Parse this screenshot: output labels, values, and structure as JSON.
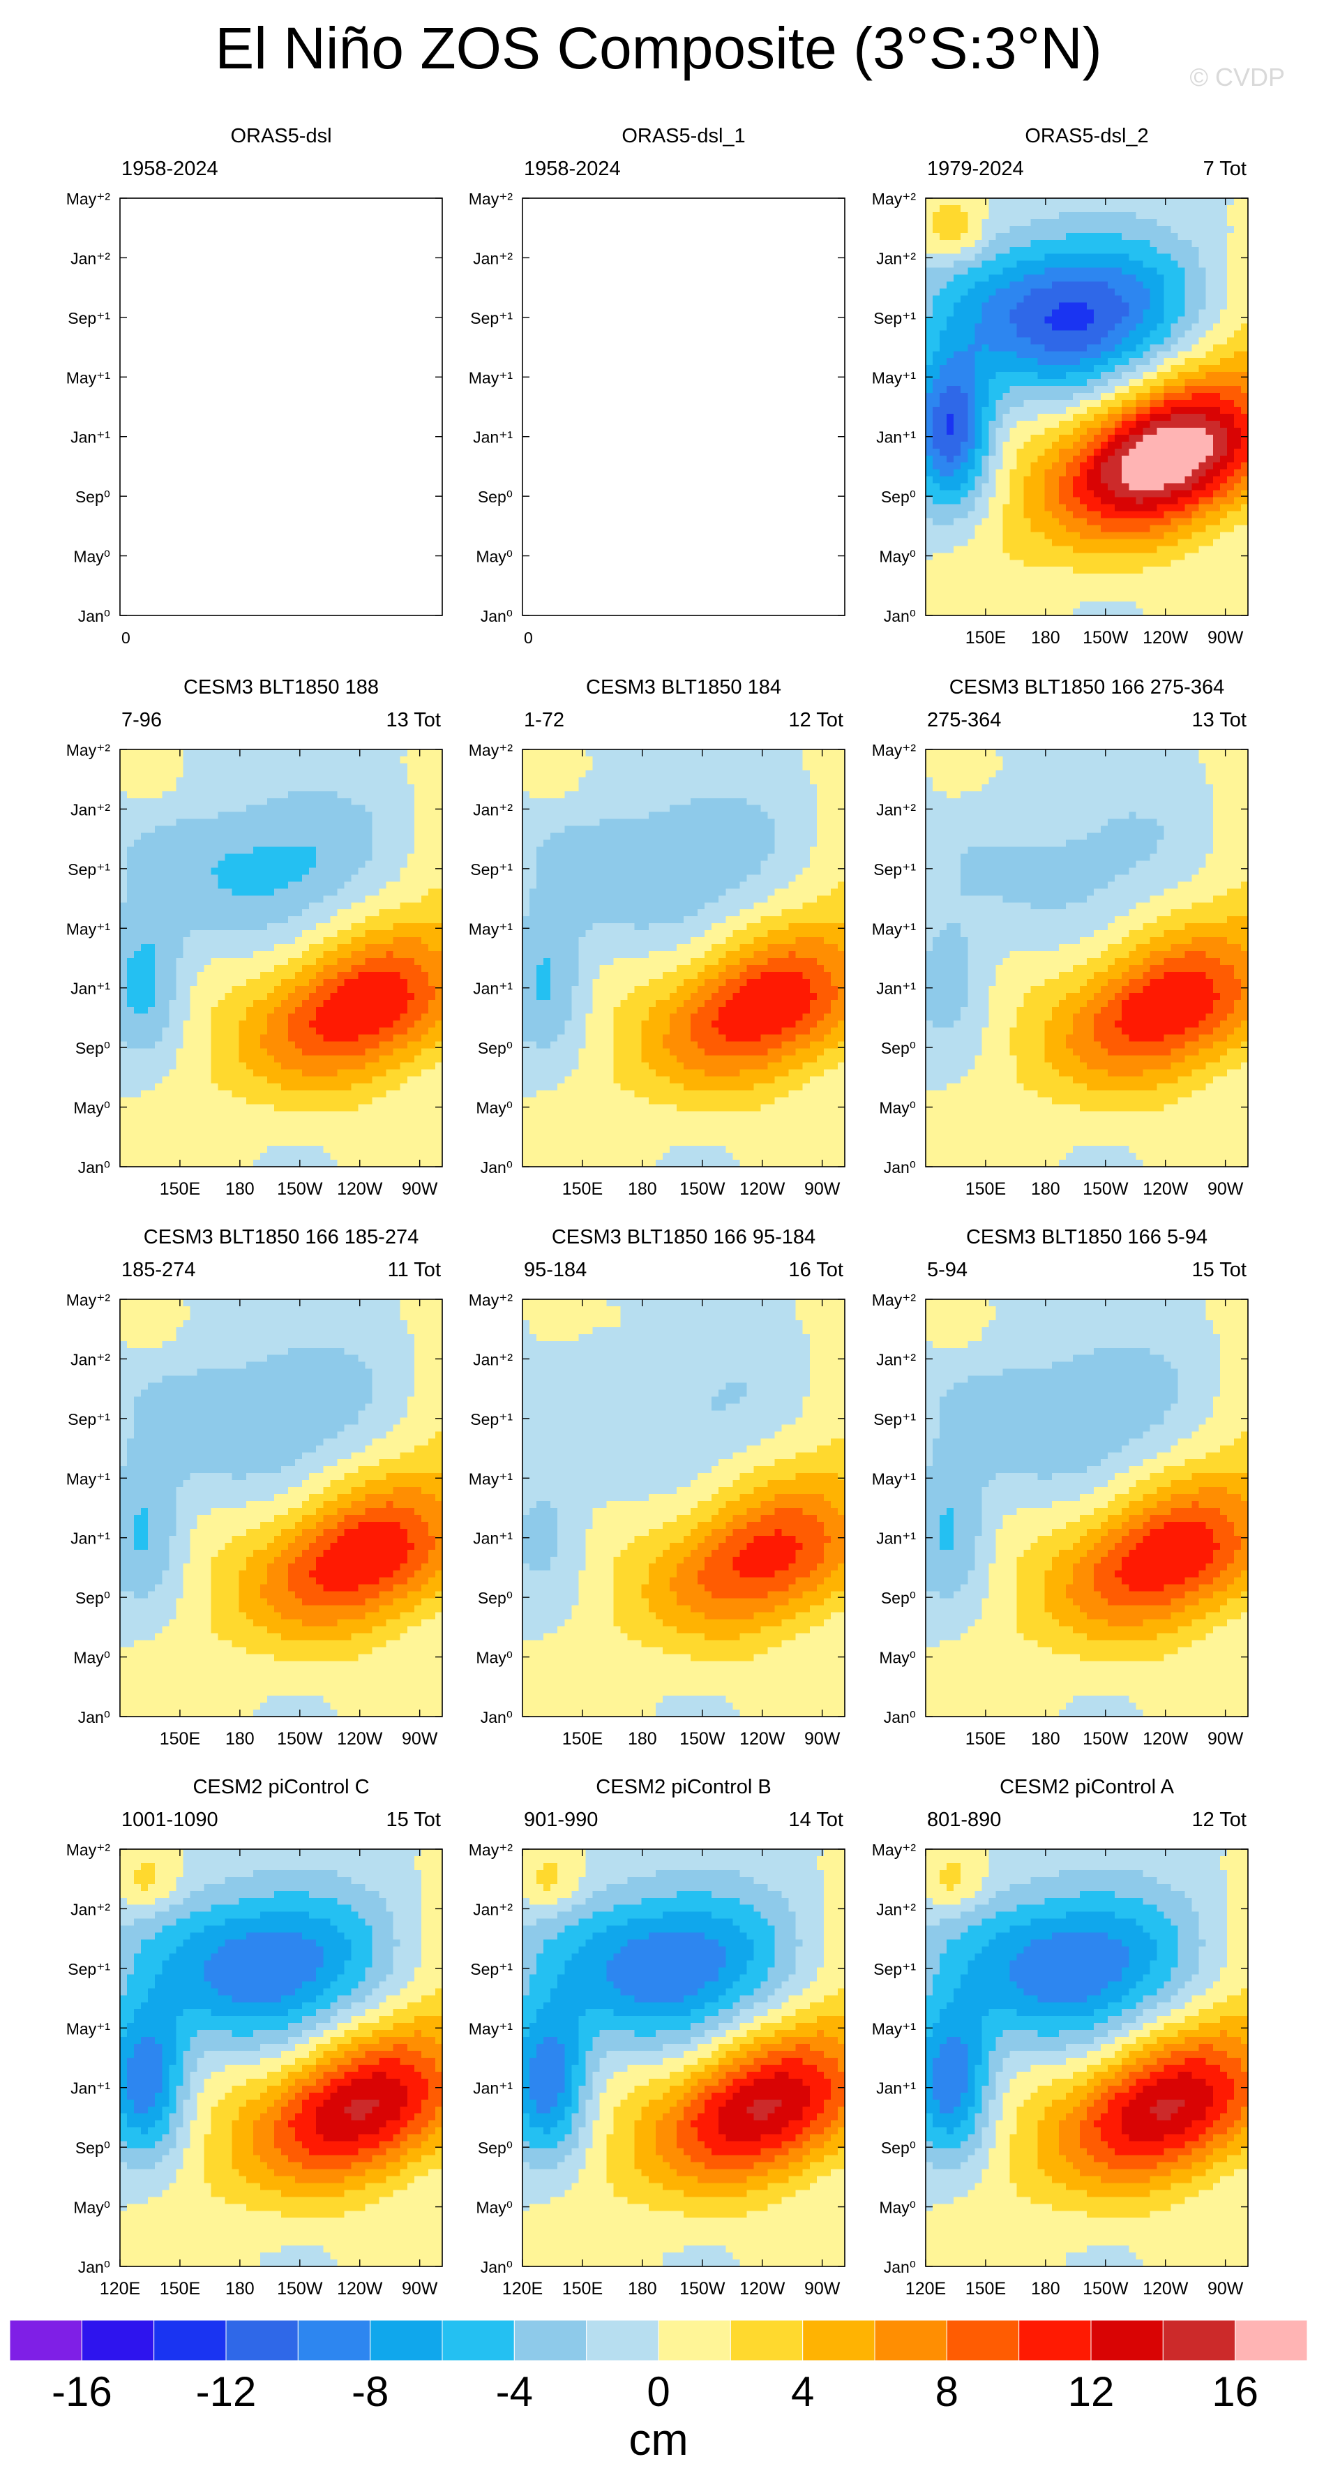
{
  "title": "El Niño ZOS Composite (3°S:3°N)",
  "credit": "© CVDP",
  "colors": {
    "levels": [
      -16,
      -14,
      -12,
      -10,
      -8,
      -6,
      -4,
      -2,
      0,
      2,
      4,
      6,
      8,
      10,
      12,
      14,
      16
    ],
    "palette": [
      "#7f1fe6",
      "#2e14ee",
      "#1a34f2",
      "#2f68e8",
      "#2d86f0",
      "#10a7ec",
      "#24c0f2",
      "#8ecaea",
      "#b7def0",
      "#fff597",
      "#ffd92e",
      "#ffb302",
      "#ff8e02",
      "#ff5c02",
      "#ff1a02",
      "#d90404",
      "#cc2a2a",
      "#ffb4b4"
    ]
  },
  "colorbar": {
    "tick_labels": [
      "-16",
      "-12",
      "-8",
      "-4",
      "0",
      "4",
      "8",
      "12",
      "16"
    ],
    "tick_values": [
      -16,
      -12,
      -8,
      -4,
      0,
      4,
      8,
      12,
      16
    ],
    "unit": "cm"
  },
  "chart_data": [
    {
      "type": "heatmap",
      "title": "ORAS5-dsl",
      "left_label": "1958-2024",
      "right_label": "",
      "empty": true,
      "x_tick_labels": [
        "0"
      ],
      "peak": 0,
      "cold": 0
    },
    {
      "type": "heatmap",
      "title": "ORAS5-dsl_1",
      "left_label": "1958-2024",
      "right_label": "",
      "empty": true,
      "x_tick_labels": [
        "0"
      ],
      "peak": 0,
      "cold": 0
    },
    {
      "type": "heatmap",
      "title": "ORAS5-dsl_2",
      "left_label": "1979-2024",
      "right_label": "7 Tot",
      "empty": false,
      "x_tick_labels": [
        "150E",
        "180",
        "150W",
        "120W",
        "90W"
      ],
      "peak": 16.5,
      "cold": -13
    },
    {
      "type": "heatmap",
      "title": "CESM3 BLT1850 188",
      "left_label": "7-96",
      "right_label": "13 Tot",
      "empty": false,
      "x_tick_labels": [
        "150E",
        "180",
        "150W",
        "120W",
        "90W"
      ],
      "peak": 10.5,
      "cold": -5
    },
    {
      "type": "heatmap",
      "title": "CESM3 BLT1850 184",
      "left_label": "1-72",
      "right_label": "12 Tot",
      "empty": false,
      "x_tick_labels": [
        "150E",
        "180",
        "150W",
        "120W",
        "90W"
      ],
      "peak": 10.5,
      "cold": -4.5
    },
    {
      "type": "heatmap",
      "title": "CESM3 BLT1850 166 275-364",
      "left_label": "275-364",
      "right_label": "13 Tot",
      "empty": false,
      "x_tick_labels": [
        "150E",
        "180",
        "150W",
        "120W",
        "90W"
      ],
      "peak": 10.5,
      "cold": -3
    },
    {
      "type": "heatmap",
      "title": "CESM3 BLT1850 166 185-274",
      "left_label": "185-274",
      "right_label": "11 Tot",
      "empty": false,
      "x_tick_labels": [
        "150E",
        "180",
        "150W",
        "120W",
        "90W"
      ],
      "peak": 10.5,
      "cold": -4.5
    },
    {
      "type": "heatmap",
      "title": "CESM3 BLT1850 166 95-184",
      "left_label": "95-184",
      "right_label": "16 Tot",
      "empty": false,
      "x_tick_labels": [
        "150E",
        "180",
        "150W",
        "120W",
        "90W"
      ],
      "peak": 9.5,
      "cold": -2.5
    },
    {
      "type": "heatmap",
      "title": "CESM3 BLT1850 166 5-94",
      "left_label": "5-94",
      "right_label": "15 Tot",
      "empty": false,
      "x_tick_labels": [
        "150E",
        "180",
        "150W",
        "120W",
        "90W"
      ],
      "peak": 10.5,
      "cold": -4.5
    },
    {
      "type": "heatmap",
      "title": "CESM2 piControl C",
      "left_label": "1001-1090",
      "right_label": "15 Tot",
      "empty": false,
      "x_tick_labels": [
        "120E",
        "150E",
        "180",
        "150W",
        "120W",
        "90W"
      ],
      "peak": 12.5,
      "cold": -10.5
    },
    {
      "type": "heatmap",
      "title": "CESM2 piControl B",
      "left_label": "901-990",
      "right_label": "14 Tot",
      "empty": false,
      "x_tick_labels": [
        "120E",
        "150E",
        "180",
        "150W",
        "120W",
        "90W"
      ],
      "peak": 12.5,
      "cold": -10.5
    },
    {
      "type": "heatmap",
      "title": "CESM2 piControl A",
      "left_label": "801-890",
      "right_label": "12 Tot",
      "empty": false,
      "x_tick_labels": [
        "120E",
        "150E",
        "180",
        "150W",
        "120W",
        "90W"
      ],
      "peak": 12.5,
      "cold": -10.5
    }
  ],
  "y_tick_labels": [
    "Jan⁰",
    "May⁰",
    "Sep⁰",
    "Jan⁺¹",
    "May⁺¹",
    "Sep⁺¹",
    "Jan⁺²",
    "May⁺²"
  ]
}
